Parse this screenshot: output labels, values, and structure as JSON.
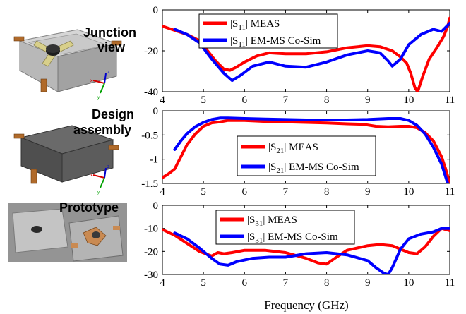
{
  "colors": {
    "meas": "#ff0000",
    "sim": "#0000ff"
  },
  "thumbnails": [
    {
      "label_lines": [
        "Junction",
        "view"
      ]
    },
    {
      "label_lines": [
        "Design",
        "assembly"
      ]
    },
    {
      "label_lines": [
        "Prototype"
      ]
    }
  ],
  "xlabel": "Frequency (GHz)",
  "chart_data": [
    {
      "type": "line",
      "xlim": [
        4,
        11
      ],
      "ylim": [
        -40,
        0
      ],
      "xticks": [
        "4",
        "5",
        "6",
        "7",
        "8",
        "9",
        "10",
        "11"
      ],
      "yticks": [
        "0",
        "-20",
        "-40"
      ],
      "ytick_values": [
        0,
        -20,
        -40
      ],
      "legend_position": "top-center",
      "series": [
        {
          "name": "|S11| MEAS",
          "legend_main": "|S",
          "legend_sub": "11",
          "legend_rest": "| MEAS",
          "role": "meas",
          "x": [
            4,
            4.3,
            4.6,
            4.9,
            5.1,
            5.3,
            5.5,
            5.65,
            5.8,
            6,
            6.3,
            6.6,
            7,
            7.5,
            8,
            8.5,
            9,
            9.3,
            9.6,
            9.8,
            9.95,
            10.05,
            10.15,
            10.22,
            10.35,
            10.5,
            10.7,
            10.85,
            10.95,
            11
          ],
          "y": [
            -8,
            -10,
            -12,
            -15,
            -20,
            -25,
            -29,
            -29.5,
            -28,
            -25.5,
            -22.5,
            -21,
            -21.5,
            -21.5,
            -20.5,
            -18.5,
            -17.5,
            -18,
            -20,
            -23,
            -26,
            -31,
            -38,
            -40,
            -32,
            -24,
            -18,
            -13,
            -8,
            -4
          ]
        },
        {
          "name": "|S11| EM-MS Co-Sim",
          "legend_main": "|S",
          "legend_sub": "11",
          "legend_rest": "| EM-MS Co-Sim",
          "role": "sim",
          "x": [
            4.3,
            4.6,
            4.9,
            5.2,
            5.5,
            5.7,
            5.9,
            6.2,
            6.6,
            7,
            7.5,
            8,
            8.5,
            9,
            9.3,
            9.5,
            9.6,
            9.8,
            10,
            10.3,
            10.6,
            10.8,
            11
          ],
          "y": [
            -9.5,
            -12,
            -16,
            -24,
            -31,
            -34.5,
            -32,
            -27.5,
            -25.5,
            -27.5,
            -28,
            -25.5,
            -22,
            -20,
            -21,
            -25,
            -27.5,
            -24,
            -17,
            -12,
            -9.5,
            -10.5,
            -6.5
          ]
        }
      ]
    },
    {
      "type": "line",
      "xlim": [
        4,
        11
      ],
      "ylim": [
        -1.5,
        0
      ],
      "xticks": [
        "4",
        "5",
        "6",
        "7",
        "8",
        "9",
        "10",
        "11"
      ],
      "yticks": [
        "0",
        "-0.5",
        "-1",
        "-1.5"
      ],
      "ytick_values": [
        0,
        -0.5,
        -1,
        -1.5
      ],
      "legend_position": "lower-center",
      "series": [
        {
          "name": "|S21| MEAS",
          "legend_main": "|S",
          "legend_sub": "21",
          "legend_rest": "| MEAS",
          "role": "meas",
          "x": [
            4,
            4.15,
            4.3,
            4.45,
            4.6,
            4.8,
            5,
            5.2,
            5.4,
            5.6,
            6,
            6.5,
            7,
            7.5,
            8,
            8.5,
            8.9,
            9.2,
            9.5,
            9.8,
            10,
            10.2,
            10.4,
            10.6,
            10.8,
            10.9,
            11
          ],
          "y": [
            -1.38,
            -1.3,
            -1.2,
            -0.95,
            -0.7,
            -0.48,
            -0.32,
            -0.25,
            -0.23,
            -0.2,
            -0.2,
            -0.22,
            -0.23,
            -0.24,
            -0.25,
            -0.27,
            -0.28,
            -0.32,
            -0.33,
            -0.32,
            -0.32,
            -0.35,
            -0.45,
            -0.62,
            -0.95,
            -1.2,
            -1.5
          ]
        },
        {
          "name": "|S21| EM-MS Co-Sim",
          "legend_main": "|S",
          "legend_sub": "21",
          "legend_rest": "| EM-MS Co-Sim",
          "role": "sim",
          "x": [
            4.3,
            4.45,
            4.6,
            4.8,
            5,
            5.2,
            5.4,
            5.6,
            6,
            6.5,
            7,
            7.5,
            8,
            8.5,
            9,
            9.5,
            9.8,
            10,
            10.2,
            10.4,
            10.6,
            10.8,
            10.95
          ],
          "y": [
            -0.8,
            -0.62,
            -0.47,
            -0.33,
            -0.24,
            -0.18,
            -0.15,
            -0.15,
            -0.16,
            -0.17,
            -0.18,
            -0.19,
            -0.19,
            -0.19,
            -0.18,
            -0.16,
            -0.16,
            -0.2,
            -0.3,
            -0.48,
            -0.75,
            -1.1,
            -1.5
          ]
        }
      ]
    },
    {
      "type": "line",
      "xlim": [
        4,
        11
      ],
      "ylim": [
        -30,
        0
      ],
      "xticks": [
        "4",
        "5",
        "6",
        "7",
        "8",
        "9",
        "10",
        "11"
      ],
      "yticks": [
        "0",
        "-10",
        "-20",
        "-30"
      ],
      "ytick_values": [
        0,
        -10,
        -20,
        -30
      ],
      "legend_position": "top-center",
      "series": [
        {
          "name": "|S31| MEAS",
          "legend_main": "|S",
          "legend_sub": "31",
          "legend_rest": "| MEAS",
          "role": "meas",
          "x": [
            4,
            4.3,
            4.6,
            4.9,
            5.2,
            5.35,
            5.5,
            5.7,
            6,
            6.5,
            7,
            7.5,
            7.8,
            8,
            8.2,
            8.5,
            9,
            9.3,
            9.6,
            9.8,
            10,
            10.2,
            10.4,
            10.6,
            10.8,
            11
          ],
          "y": [
            -10.5,
            -13,
            -16.5,
            -20,
            -22,
            -20.5,
            -21,
            -20.5,
            -19.5,
            -19.5,
            -20.5,
            -23,
            -25,
            -25.5,
            -23,
            -19.5,
            -17.5,
            -17,
            -17.5,
            -19,
            -20.5,
            -21,
            -18,
            -13.5,
            -10,
            -11
          ]
        },
        {
          "name": "|S31| EM-MS Co-Sim",
          "legend_main": "|S",
          "legend_sub": "31",
          "legend_rest": "| EM-MS Co-Sim",
          "role": "sim",
          "x": [
            4.3,
            4.6,
            4.9,
            5.2,
            5.4,
            5.6,
            5.8,
            6.2,
            6.6,
            7,
            7.5,
            8,
            8.5,
            9,
            9.2,
            9.4,
            9.5,
            9.6,
            9.8,
            10,
            10.3,
            10.6,
            10.8,
            11
          ],
          "y": [
            -12,
            -14.5,
            -18.5,
            -23,
            -25.5,
            -26,
            -24.5,
            -23,
            -22.5,
            -22.5,
            -21,
            -20.5,
            -21.5,
            -24,
            -27,
            -29.5,
            -30,
            -27,
            -19,
            -14.5,
            -12.5,
            -11.5,
            -10,
            -10
          ]
        }
      ]
    }
  ]
}
